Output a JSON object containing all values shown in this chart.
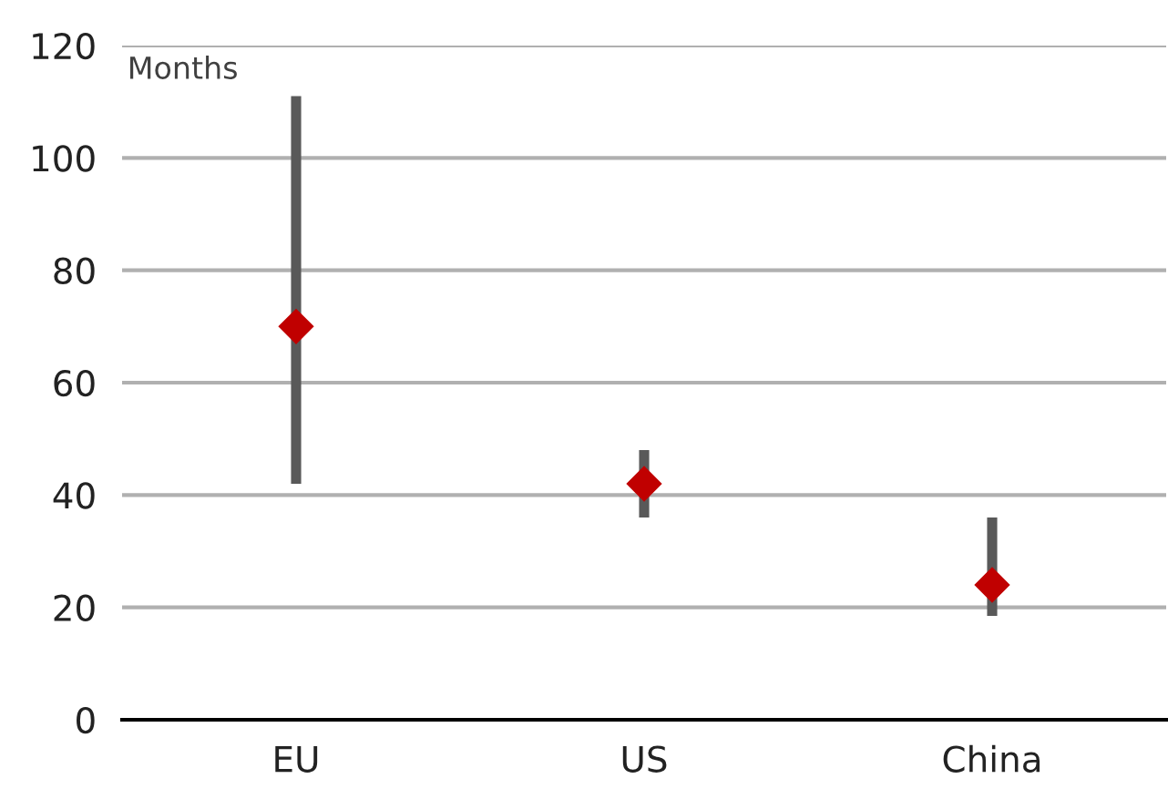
{
  "chart_data": {
    "type": "scatter",
    "ylabel": "Months",
    "categories": [
      "EU",
      "US",
      "China"
    ],
    "series": [
      {
        "color": "#c00000",
        "values": [
          70,
          42,
          24
        ],
        "errors": [
          [
            42,
            111
          ],
          [
            36,
            48
          ],
          [
            18.5,
            36
          ]
        ]
      }
    ],
    "marker": "diamond",
    "ylim": [
      0,
      120
    ],
    "yticks": [
      0,
      20,
      40,
      60,
      80,
      100,
      120
    ],
    "grid": "y",
    "legend": false
  }
}
